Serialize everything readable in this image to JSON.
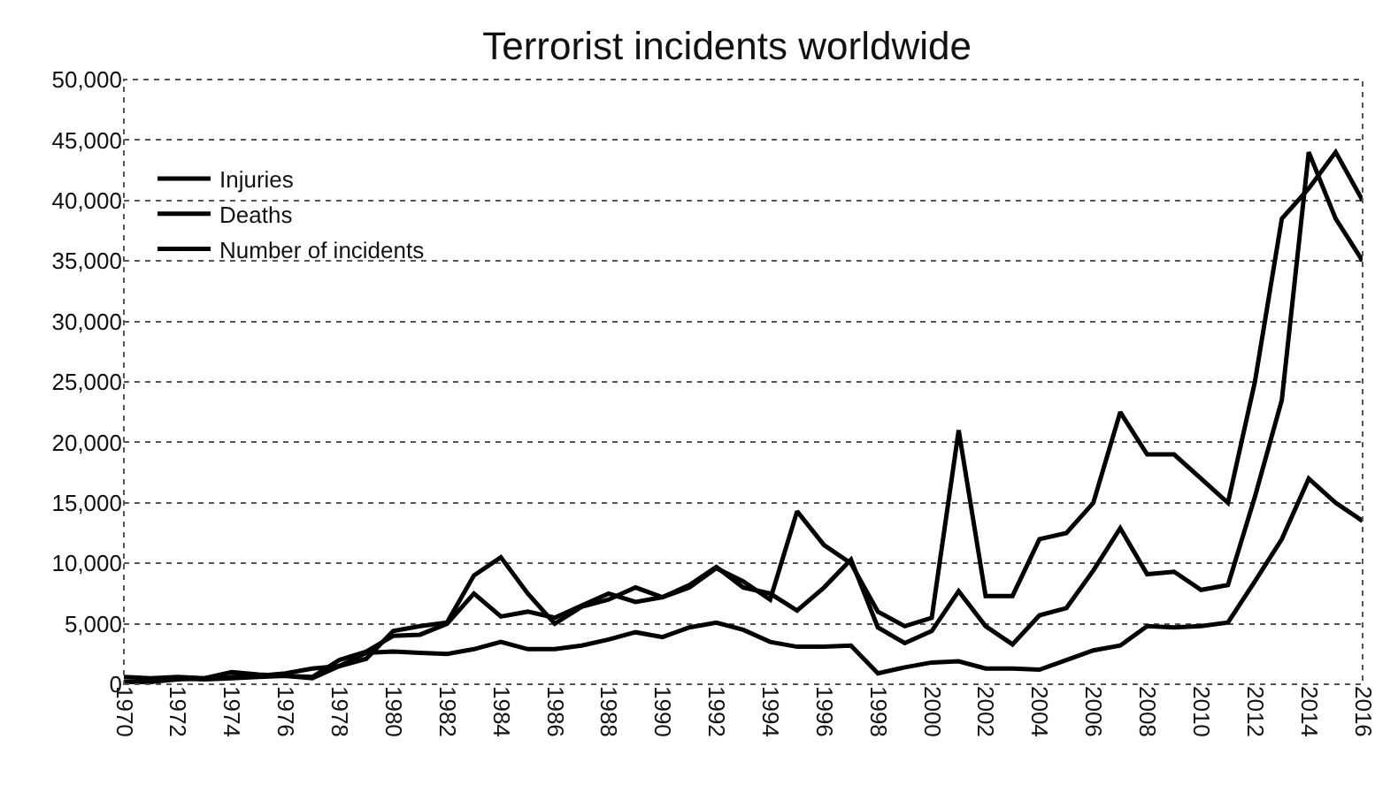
{
  "chart_data": {
    "type": "line",
    "title": "Terrorist incidents worldwide",
    "x": [
      1970,
      1971,
      1972,
      1973,
      1974,
      1975,
      1976,
      1977,
      1978,
      1979,
      1980,
      1981,
      1982,
      1983,
      1984,
      1985,
      1986,
      1987,
      1988,
      1989,
      1990,
      1991,
      1992,
      1993,
      1994,
      1995,
      1996,
      1997,
      1998,
      1999,
      2000,
      2001,
      2002,
      2003,
      2004,
      2005,
      2006,
      2007,
      2008,
      2009,
      2010,
      2011,
      2012,
      2013,
      2014,
      2015,
      2016
    ],
    "series": [
      {
        "name": "Injuries",
        "color": "#000000",
        "values": [
          200,
          200,
          400,
          500,
          1000,
          800,
          700,
          600,
          2000,
          2700,
          4000,
          4100,
          5000,
          7500,
          5600,
          6000,
          5500,
          6500,
          7500,
          6800,
          7200,
          8000,
          9600,
          8500,
          7000,
          14300,
          11500,
          10000,
          6000,
          4800,
          5500,
          21000,
          7300,
          7300,
          12000,
          12500,
          15000,
          22500,
          19000,
          19000,
          17000,
          15000,
          25000,
          38500,
          41000,
          44000,
          40000
        ]
      },
      {
        "name": "Deaths",
        "color": "#000000",
        "values": [
          200,
          200,
          500,
          400,
          500,
          600,
          700,
          500,
          1500,
          2100,
          4400,
          4800,
          5100,
          9000,
          10500,
          7500,
          5000,
          6400,
          7000,
          8000,
          7200,
          8200,
          9700,
          8000,
          7500,
          6100,
          8000,
          10300,
          4700,
          3400,
          4400,
          7700,
          4800,
          3300,
          5700,
          6300,
          9400,
          12900,
          9100,
          9300,
          7800,
          8200,
          15500,
          23500,
          44000,
          38500,
          35000
        ]
      },
      {
        "name": "Number of incidents",
        "color": "#000000",
        "values": [
          600,
          500,
          600,
          500,
          600,
          700,
          900,
          1300,
          1500,
          2600,
          2700,
          2600,
          2500,
          2900,
          3500,
          2900,
          2900,
          3200,
          3700,
          4300,
          3900,
          4700,
          5100,
          4500,
          3500,
          3100,
          3100,
          3200,
          900,
          1400,
          1800,
          1900,
          1300,
          1300,
          1200,
          2000,
          2800,
          3200,
          4800,
          4700,
          4800,
          5100,
          8500,
          12000,
          17000,
          15000,
          13500
        ]
      }
    ],
    "xlim": [
      1970,
      2016
    ],
    "xticks": [
      1970,
      1972,
      1974,
      1976,
      1978,
      1980,
      1982,
      1984,
      1986,
      1988,
      1990,
      1992,
      1994,
      1996,
      1998,
      2000,
      2002,
      2004,
      2006,
      2008,
      2010,
      2012,
      2014,
      2016
    ],
    "ylim": [
      0,
      50000
    ],
    "yticks": [
      {
        "value": 0,
        "label": "0"
      },
      {
        "value": 5000,
        "label": "5,000"
      },
      {
        "value": 10000,
        "label": "10,000"
      },
      {
        "value": 15000,
        "label": "15,000"
      },
      {
        "value": 20000,
        "label": "20,000"
      },
      {
        "value": 25000,
        "label": "25,000"
      },
      {
        "value": 30000,
        "label": "30,000"
      },
      {
        "value": 35000,
        "label": "35,000"
      },
      {
        "value": 40000,
        "label": "40,000"
      },
      {
        "value": 45000,
        "label": "45,000"
      },
      {
        "value": 50000,
        "label": "50,000"
      }
    ],
    "grid": "y",
    "legend": "top left",
    "marker": "none",
    "line_style": "solid"
  }
}
